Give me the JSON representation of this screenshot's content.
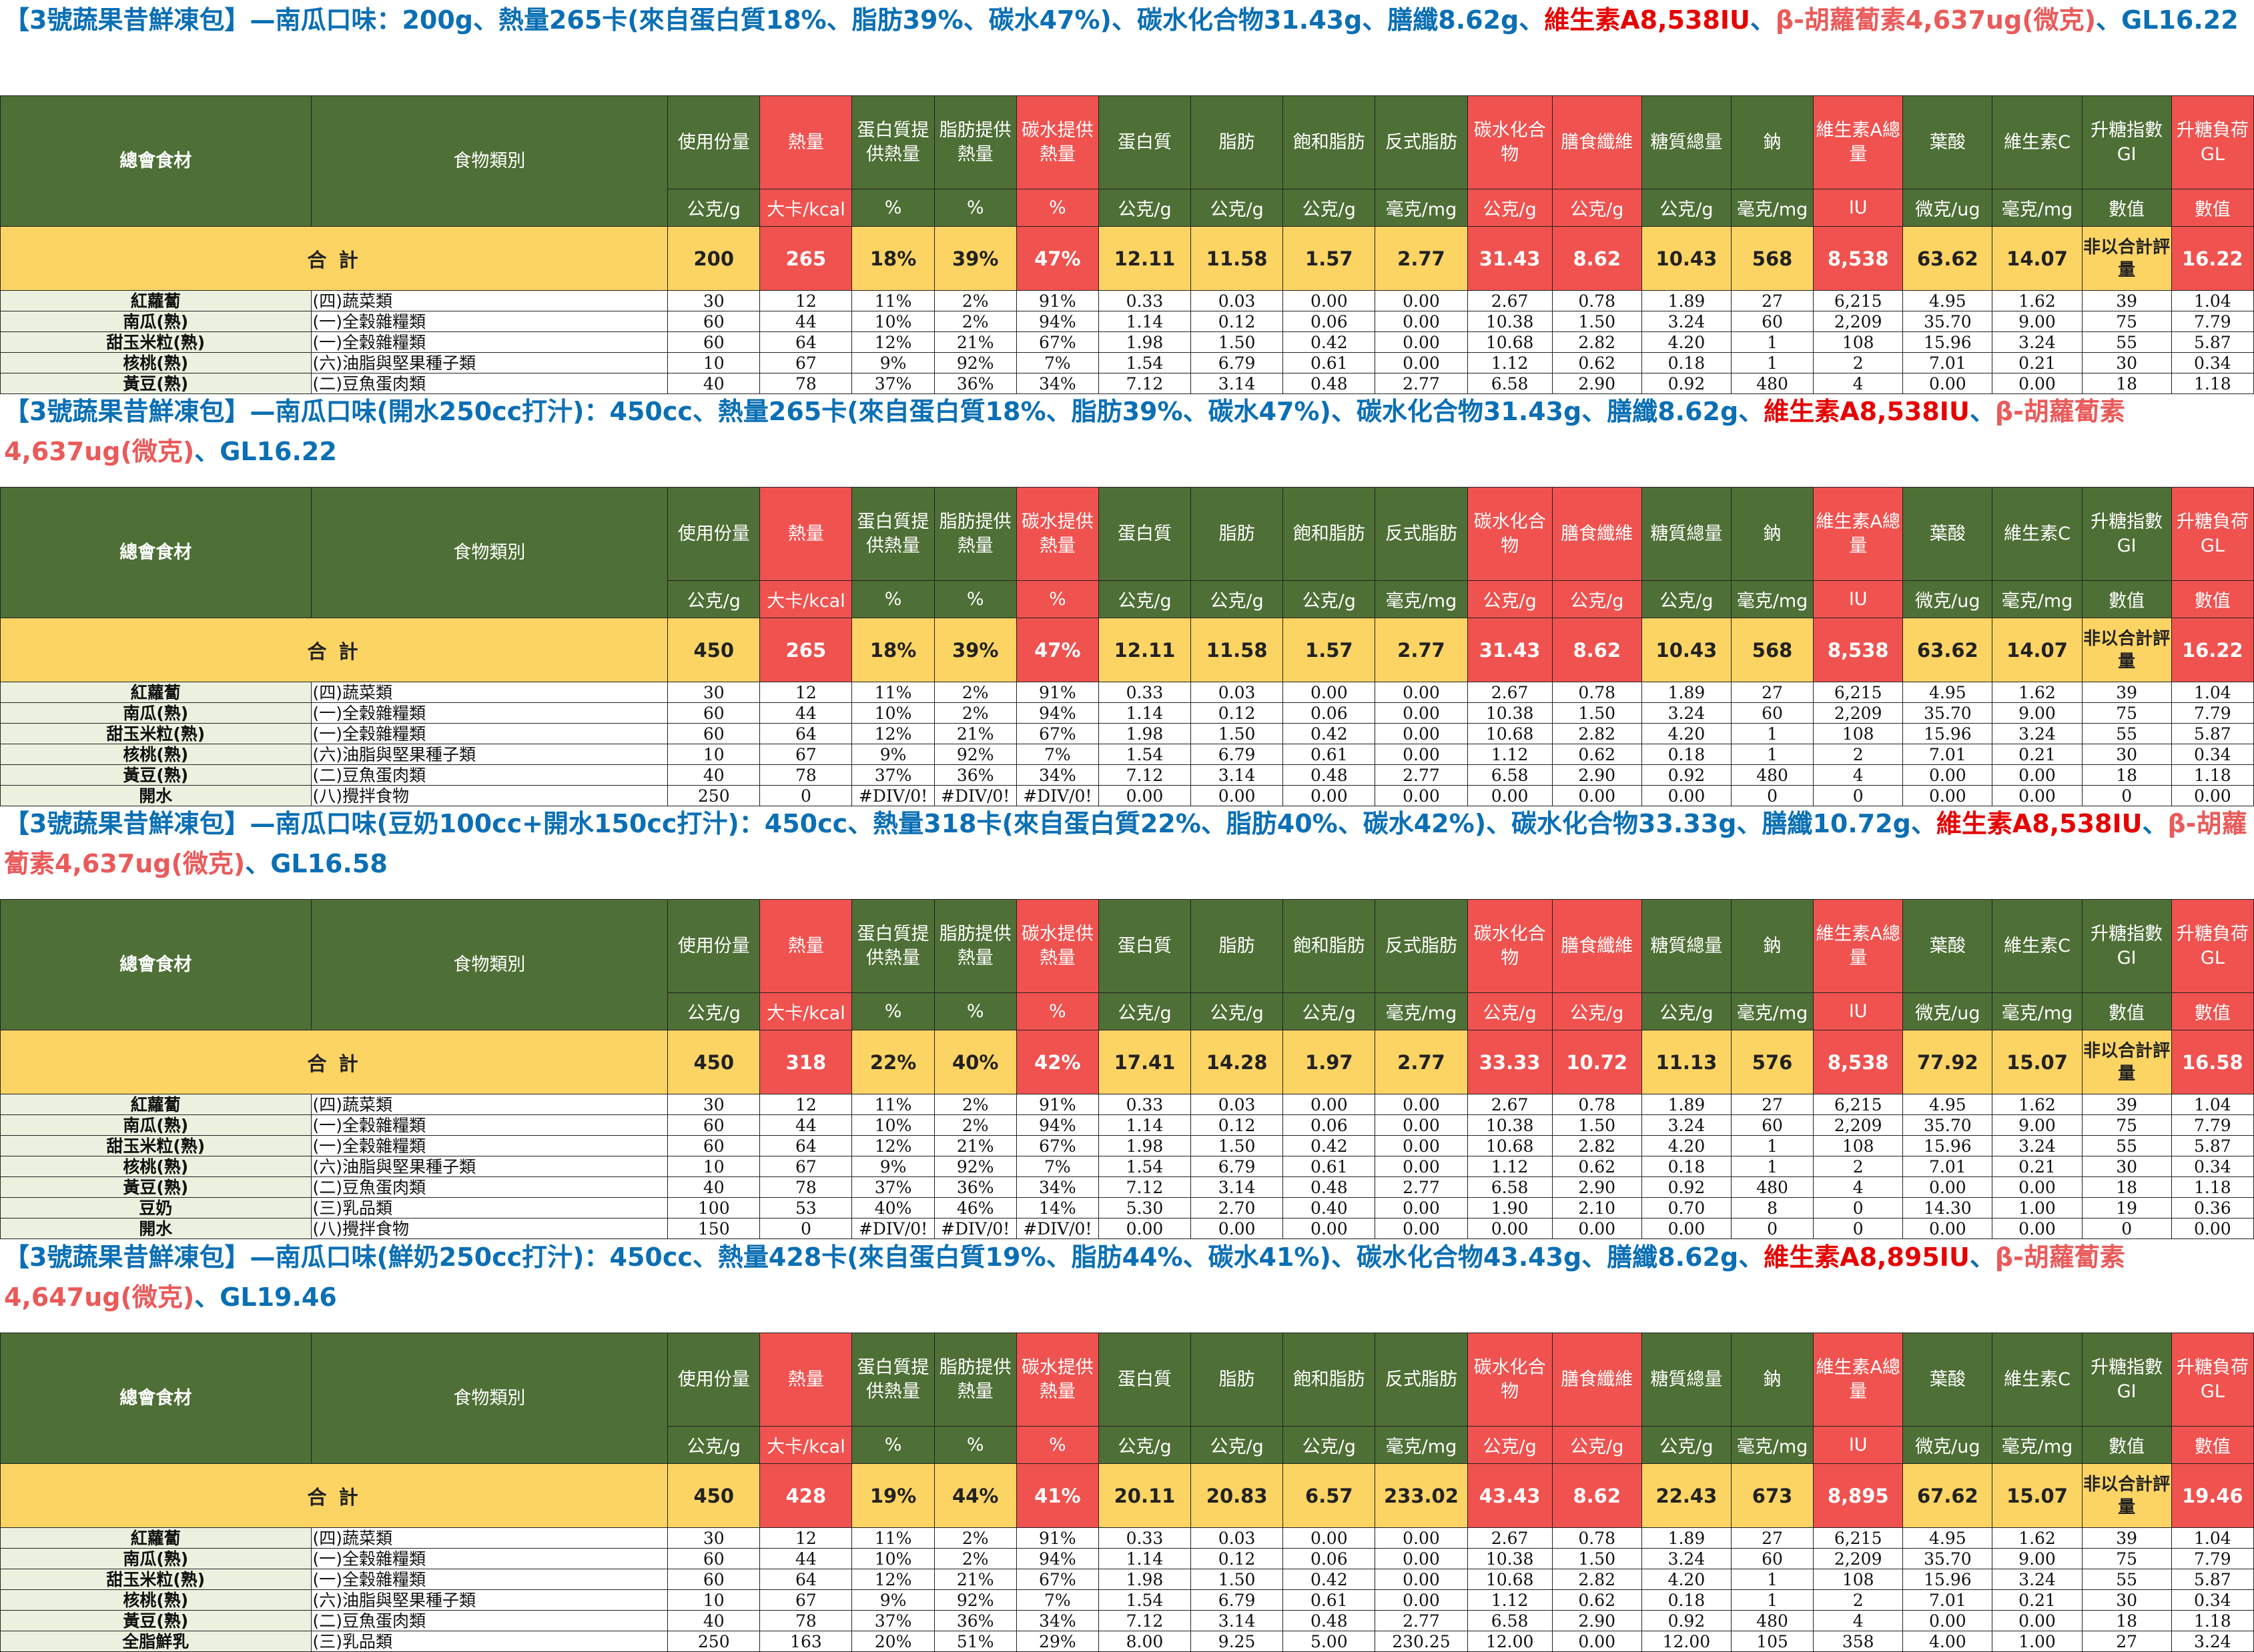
{
  "sections": [
    {
      "title_parts": [
        {
          "text": "【3號蔬果昔鮮凍包】—南瓜口味：200g、熱量265卡(來自蛋白質18%、脂肪39%、碳水47%)、碳水化合物31.43g、膳纖8.62g、",
          "color": "blue"
        },
        {
          "text": "維生素A8,538IU",
          "color": "red"
        },
        {
          "text": "、",
          "color": "blue"
        },
        {
          "text": "β-胡蘿蔔素4,637ug(微克)",
          "color": "pink"
        },
        {
          "text": "、GL16.22",
          "color": "blue"
        }
      ],
      "total": [
        "200",
        "265",
        "18%",
        "39%",
        "47%",
        "12.11",
        "11.58",
        "1.57",
        "2.77",
        "31.43",
        "8.62",
        "10.43",
        "568",
        "8,538",
        "63.62",
        "14.07",
        "非以合計評量",
        "16.22"
      ],
      "rows": [
        [
          "紅蘿蔔",
          "(四)蔬菜類",
          "30",
          "12",
          "11%",
          "2%",
          "91%",
          "0.33",
          "0.03",
          "0.00",
          "0.00",
          "2.67",
          "0.78",
          "1.89",
          "27",
          "6,215",
          "4.95",
          "1.62",
          "39",
          "1.04"
        ],
        [
          "南瓜(熟)",
          "(一)全穀雜糧類",
          "60",
          "44",
          "10%",
          "2%",
          "94%",
          "1.14",
          "0.12",
          "0.06",
          "0.00",
          "10.38",
          "1.50",
          "3.24",
          "60",
          "2,209",
          "35.70",
          "9.00",
          "75",
          "7.79"
        ],
        [
          "甜玉米粒(熟)",
          "(一)全穀雜糧類",
          "60",
          "64",
          "12%",
          "21%",
          "67%",
          "1.98",
          "1.50",
          "0.42",
          "0.00",
          "10.68",
          "2.82",
          "4.20",
          "1",
          "108",
          "15.96",
          "3.24",
          "55",
          "5.87"
        ],
        [
          "核桃(熟)",
          "(六)油脂與堅果種子類",
          "10",
          "67",
          "9%",
          "92%",
          "7%",
          "1.54",
          "6.79",
          "0.61",
          "0.00",
          "1.12",
          "0.62",
          "0.18",
          "1",
          "2",
          "7.01",
          "0.21",
          "30",
          "0.34"
        ],
        [
          "黃豆(熟)",
          "(二)豆魚蛋肉類",
          "40",
          "78",
          "37%",
          "36%",
          "34%",
          "7.12",
          "3.14",
          "0.48",
          "2.77",
          "6.58",
          "2.90",
          "0.92",
          "480",
          "4",
          "0.00",
          "0.00",
          "18",
          "1.18"
        ]
      ]
    },
    {
      "title_parts": [
        {
          "text": "【3號蔬果昔鮮凍包】—南瓜口味(開水250cc打汁)：450cc、熱量265卡(來自蛋白質18%、脂肪39%、碳水47%)、碳水化合物31.43g、膳纖8.62g、",
          "color": "blue"
        },
        {
          "text": "維生素A8,538IU",
          "color": "red"
        },
        {
          "text": "、",
          "color": "blue"
        },
        {
          "text": "β-胡蘿蔔素4,637ug(微克)",
          "color": "pink"
        },
        {
          "text": "、GL16.22",
          "color": "blue"
        }
      ],
      "total": [
        "450",
        "265",
        "18%",
        "39%",
        "47%",
        "12.11",
        "11.58",
        "1.57",
        "2.77",
        "31.43",
        "8.62",
        "10.43",
        "568",
        "8,538",
        "63.62",
        "14.07",
        "非以合計評量",
        "16.22"
      ],
      "rows": [
        [
          "紅蘿蔔",
          "(四)蔬菜類",
          "30",
          "12",
          "11%",
          "2%",
          "91%",
          "0.33",
          "0.03",
          "0.00",
          "0.00",
          "2.67",
          "0.78",
          "1.89",
          "27",
          "6,215",
          "4.95",
          "1.62",
          "39",
          "1.04"
        ],
        [
          "南瓜(熟)",
          "(一)全穀雜糧類",
          "60",
          "44",
          "10%",
          "2%",
          "94%",
          "1.14",
          "0.12",
          "0.06",
          "0.00",
          "10.38",
          "1.50",
          "3.24",
          "60",
          "2,209",
          "35.70",
          "9.00",
          "75",
          "7.79"
        ],
        [
          "甜玉米粒(熟)",
          "(一)全穀雜糧類",
          "60",
          "64",
          "12%",
          "21%",
          "67%",
          "1.98",
          "1.50",
          "0.42",
          "0.00",
          "10.68",
          "2.82",
          "4.20",
          "1",
          "108",
          "15.96",
          "3.24",
          "55",
          "5.87"
        ],
        [
          "核桃(熟)",
          "(六)油脂與堅果種子類",
          "10",
          "67",
          "9%",
          "92%",
          "7%",
          "1.54",
          "6.79",
          "0.61",
          "0.00",
          "1.12",
          "0.62",
          "0.18",
          "1",
          "2",
          "7.01",
          "0.21",
          "30",
          "0.34"
        ],
        [
          "黃豆(熟)",
          "(二)豆魚蛋肉類",
          "40",
          "78",
          "37%",
          "36%",
          "34%",
          "7.12",
          "3.14",
          "0.48",
          "2.77",
          "6.58",
          "2.90",
          "0.92",
          "480",
          "4",
          "0.00",
          "0.00",
          "18",
          "1.18"
        ],
        [
          "開水",
          "(八)攪拌食物",
          "250",
          "0",
          "#DIV/0!",
          "#DIV/0!",
          "#DIV/0!",
          "0.00",
          "0.00",
          "0.00",
          "0.00",
          "0.00",
          "0.00",
          "0.00",
          "0",
          "0",
          "0.00",
          "0.00",
          "0",
          "0.00"
        ]
      ]
    },
    {
      "title_parts": [
        {
          "text": "【3號蔬果昔鮮凍包】—南瓜口味(豆奶100cc+開水150cc打汁)：450cc、熱量318卡(來自蛋白質22%、脂肪40%、碳水42%)、碳水化合物33.33g、膳纖10.72g、",
          "color": "blue"
        },
        {
          "text": "維生素A8,538IU",
          "color": "red"
        },
        {
          "text": "、",
          "color": "blue"
        },
        {
          "text": "β-胡蘿蔔素4,637ug(微克)",
          "color": "pink"
        },
        {
          "text": "、GL16.58",
          "color": "blue"
        }
      ],
      "total": [
        "450",
        "318",
        "22%",
        "40%",
        "42%",
        "17.41",
        "14.28",
        "1.97",
        "2.77",
        "33.33",
        "10.72",
        "11.13",
        "576",
        "8,538",
        "77.92",
        "15.07",
        "非以合計評量",
        "16.58"
      ],
      "rows": [
        [
          "紅蘿蔔",
          "(四)蔬菜類",
          "30",
          "12",
          "11%",
          "2%",
          "91%",
          "0.33",
          "0.03",
          "0.00",
          "0.00",
          "2.67",
          "0.78",
          "1.89",
          "27",
          "6,215",
          "4.95",
          "1.62",
          "39",
          "1.04"
        ],
        [
          "南瓜(熟)",
          "(一)全穀雜糧類",
          "60",
          "44",
          "10%",
          "2%",
          "94%",
          "1.14",
          "0.12",
          "0.06",
          "0.00",
          "10.38",
          "1.50",
          "3.24",
          "60",
          "2,209",
          "35.70",
          "9.00",
          "75",
          "7.79"
        ],
        [
          "甜玉米粒(熟)",
          "(一)全穀雜糧類",
          "60",
          "64",
          "12%",
          "21%",
          "67%",
          "1.98",
          "1.50",
          "0.42",
          "0.00",
          "10.68",
          "2.82",
          "4.20",
          "1",
          "108",
          "15.96",
          "3.24",
          "55",
          "5.87"
        ],
        [
          "核桃(熟)",
          "(六)油脂與堅果種子類",
          "10",
          "67",
          "9%",
          "92%",
          "7%",
          "1.54",
          "6.79",
          "0.61",
          "0.00",
          "1.12",
          "0.62",
          "0.18",
          "1",
          "2",
          "7.01",
          "0.21",
          "30",
          "0.34"
        ],
        [
          "黃豆(熟)",
          "(二)豆魚蛋肉類",
          "40",
          "78",
          "37%",
          "36%",
          "34%",
          "7.12",
          "3.14",
          "0.48",
          "2.77",
          "6.58",
          "2.90",
          "0.92",
          "480",
          "4",
          "0.00",
          "0.00",
          "18",
          "1.18"
        ],
        [
          "豆奶",
          "(三)乳品類",
          "100",
          "53",
          "40%",
          "46%",
          "14%",
          "5.30",
          "2.70",
          "0.40",
          "0.00",
          "1.90",
          "2.10",
          "0.70",
          "8",
          "0",
          "14.30",
          "1.00",
          "19",
          "0.36"
        ],
        [
          "開水",
          "(八)攪拌食物",
          "150",
          "0",
          "#DIV/0!",
          "#DIV/0!",
          "#DIV/0!",
          "0.00",
          "0.00",
          "0.00",
          "0.00",
          "0.00",
          "0.00",
          "0.00",
          "0",
          "0",
          "0.00",
          "0.00",
          "0",
          "0.00"
        ]
      ]
    },
    {
      "title_parts": [
        {
          "text": "【3號蔬果昔鮮凍包】—南瓜口味(鮮奶250cc打汁)：450cc、熱量428卡(來自蛋白質19%、脂肪44%、碳水41%)、碳水化合物43.43g、膳纖8.62g、",
          "color": "blue"
        },
        {
          "text": "維生素A8,895IU",
          "color": "red"
        },
        {
          "text": "、",
          "color": "blue"
        },
        {
          "text": "β-胡蘿蔔素4,647ug(微克)",
          "color": "pink"
        },
        {
          "text": "、GL19.46",
          "color": "blue"
        }
      ],
      "total": [
        "450",
        "428",
        "19%",
        "44%",
        "41%",
        "20.11",
        "20.83",
        "6.57",
        "233.02",
        "43.43",
        "8.62",
        "22.43",
        "673",
        "8,895",
        "67.62",
        "15.07",
        "非以合計評量",
        "19.46"
      ],
      "rows": [
        [
          "紅蘿蔔",
          "(四)蔬菜類",
          "30",
          "12",
          "11%",
          "2%",
          "91%",
          "0.33",
          "0.03",
          "0.00",
          "0.00",
          "2.67",
          "0.78",
          "1.89",
          "27",
          "6,215",
          "4.95",
          "1.62",
          "39",
          "1.04"
        ],
        [
          "南瓜(熟)",
          "(一)全穀雜糧類",
          "60",
          "44",
          "10%",
          "2%",
          "94%",
          "1.14",
          "0.12",
          "0.06",
          "0.00",
          "10.38",
          "1.50",
          "3.24",
          "60",
          "2,209",
          "35.70",
          "9.00",
          "75",
          "7.79"
        ],
        [
          "甜玉米粒(熟)",
          "(一)全穀雜糧類",
          "60",
          "64",
          "12%",
          "21%",
          "67%",
          "1.98",
          "1.50",
          "0.42",
          "0.00",
          "10.68",
          "2.82",
          "4.20",
          "1",
          "108",
          "15.96",
          "3.24",
          "55",
          "5.87"
        ],
        [
          "核桃(熟)",
          "(六)油脂與堅果種子類",
          "10",
          "67",
          "9%",
          "92%",
          "7%",
          "1.54",
          "6.79",
          "0.61",
          "0.00",
          "1.12",
          "0.62",
          "0.18",
          "1",
          "2",
          "7.01",
          "0.21",
          "30",
          "0.34"
        ],
        [
          "黃豆(熟)",
          "(二)豆魚蛋肉類",
          "40",
          "78",
          "37%",
          "36%",
          "34%",
          "7.12",
          "3.14",
          "0.48",
          "2.77",
          "6.58",
          "2.90",
          "0.92",
          "480",
          "4",
          "0.00",
          "0.00",
          "18",
          "1.18"
        ],
        [
          "全脂鮮乳",
          "(三)乳品類",
          "250",
          "163",
          "20%",
          "51%",
          "29%",
          "8.00",
          "9.25",
          "5.00",
          "230.25",
          "12.00",
          "0.00",
          "12.00",
          "105",
          "358",
          "4.00",
          "1.00",
          "27",
          "3.24"
        ]
      ]
    }
  ],
  "header": {
    "food": "總會食材",
    "category": "食物類別",
    "cols": [
      "使用份量",
      "熱量",
      "蛋白質提供熱量",
      "脂肪提供熱量",
      "碳水提供熱量",
      "蛋白質",
      "脂肪",
      "飽和脂肪",
      "反式脂肪",
      "碳水化合物",
      "膳食纖維",
      "糖質總量",
      "鈉",
      "維生素A總量",
      "葉酸",
      "維生素C",
      "升糖指數GI",
      "升糖負荷GL"
    ],
    "units": [
      "公克/g",
      "大卡/kcal",
      "%",
      "%",
      "%",
      "公克/g",
      "公克/g",
      "公克/g",
      "毫克/mg",
      "公克/g",
      "公克/g",
      "公克/g",
      "毫克/mg",
      "IU",
      "微克/ug",
      "毫克/mg",
      "數值",
      "數值"
    ],
    "total_label": "合  計"
  },
  "colors": {
    "green": "#4e6f35",
    "red": "#f0524f",
    "yellow": "#fcd464",
    "blue_text": "#0a6fb4",
    "red_text": "#e60000",
    "pink_text": "#ea5a5a"
  }
}
